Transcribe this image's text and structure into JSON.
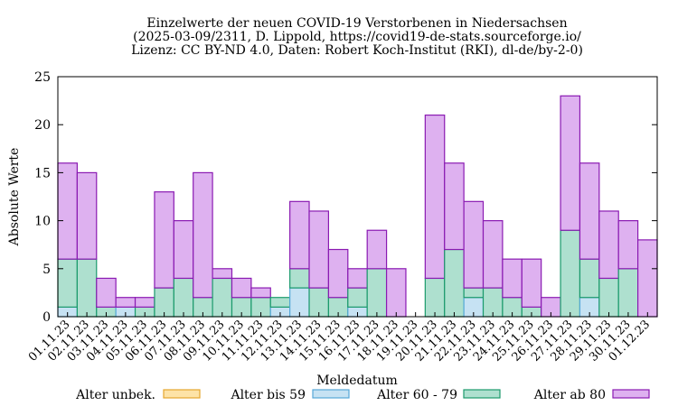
{
  "chart_data": {
    "type": "bar",
    "stacked": true,
    "title_lines": [
      "Einzelwerte der neuen COVID-19 Verstorbenen in Niedersachsen",
      "(2025-03-09/2311, D. Lippold, https://covid19-de-stats.sourceforge.io/",
      "Lizenz: CC BY-ND 4.0, Daten: Robert Koch-Institut (RKI), dl-de/by-2-0)"
    ],
    "xlabel": "Meldedatum",
    "ylabel": "Absolute Werte",
    "ylim": [
      0,
      25
    ],
    "yticks": [
      0,
      5,
      10,
      15,
      20,
      25
    ],
    "grid": false,
    "legend_position": "bottom",
    "categories": [
      "01.11.23",
      "02.11.23",
      "03.11.23",
      "04.11.23",
      "05.11.23",
      "06.11.23",
      "07.11.23",
      "08.11.23",
      "09.11.23",
      "10.11.23",
      "11.11.23",
      "12.11.23",
      "13.11.23",
      "14.11.23",
      "15.11.23",
      "16.11.23",
      "17.11.23",
      "18.11.23",
      "19.11.23",
      "20.11.23",
      "21.11.23",
      "22.11.23",
      "23.11.23",
      "24.11.23",
      "25.11.23",
      "26.11.23",
      "27.11.23",
      "28.11.23",
      "29.11.23",
      "30.11.23",
      "01.12.23"
    ],
    "series": [
      {
        "name": "Alter unbek.",
        "fill": "#fde3a7",
        "stroke": "#e5a72e",
        "values": [
          0,
          0,
          0,
          0,
          0,
          0,
          0,
          0,
          0,
          0,
          0,
          0,
          0,
          0,
          0,
          0,
          0,
          0,
          0,
          0,
          0,
          0,
          0,
          0,
          0,
          0,
          0,
          0,
          0,
          0,
          0
        ]
      },
      {
        "name": "Alter bis 59",
        "fill": "#c6e2f3",
        "stroke": "#56a8d8",
        "values": [
          1,
          0,
          0,
          1,
          0,
          0,
          0,
          0,
          0,
          0,
          0,
          1,
          3,
          0,
          0,
          1,
          0,
          0,
          0,
          0,
          0,
          2,
          0,
          0,
          0,
          0,
          0,
          2,
          0,
          0,
          0
        ]
      },
      {
        "name": "Alter 60 - 79",
        "fill": "#aee0cf",
        "stroke": "#1b9a6c",
        "values": [
          5,
          6,
          1,
          0,
          1,
          3,
          4,
          2,
          4,
          2,
          2,
          1,
          2,
          3,
          2,
          2,
          5,
          0,
          0,
          4,
          7,
          1,
          3,
          2,
          1,
          0,
          9,
          4,
          4,
          5,
          0
        ]
      },
      {
        "name": "Alter ab 80",
        "fill": "#deb1f0",
        "stroke": "#8a1ab2",
        "values": [
          10,
          9,
          3,
          1,
          1,
          10,
          6,
          13,
          1,
          2,
          1,
          0,
          7,
          8,
          5,
          2,
          4,
          5,
          0,
          17,
          9,
          9,
          7,
          4,
          5,
          2,
          14,
          10,
          7,
          5,
          8
        ]
      }
    ]
  }
}
